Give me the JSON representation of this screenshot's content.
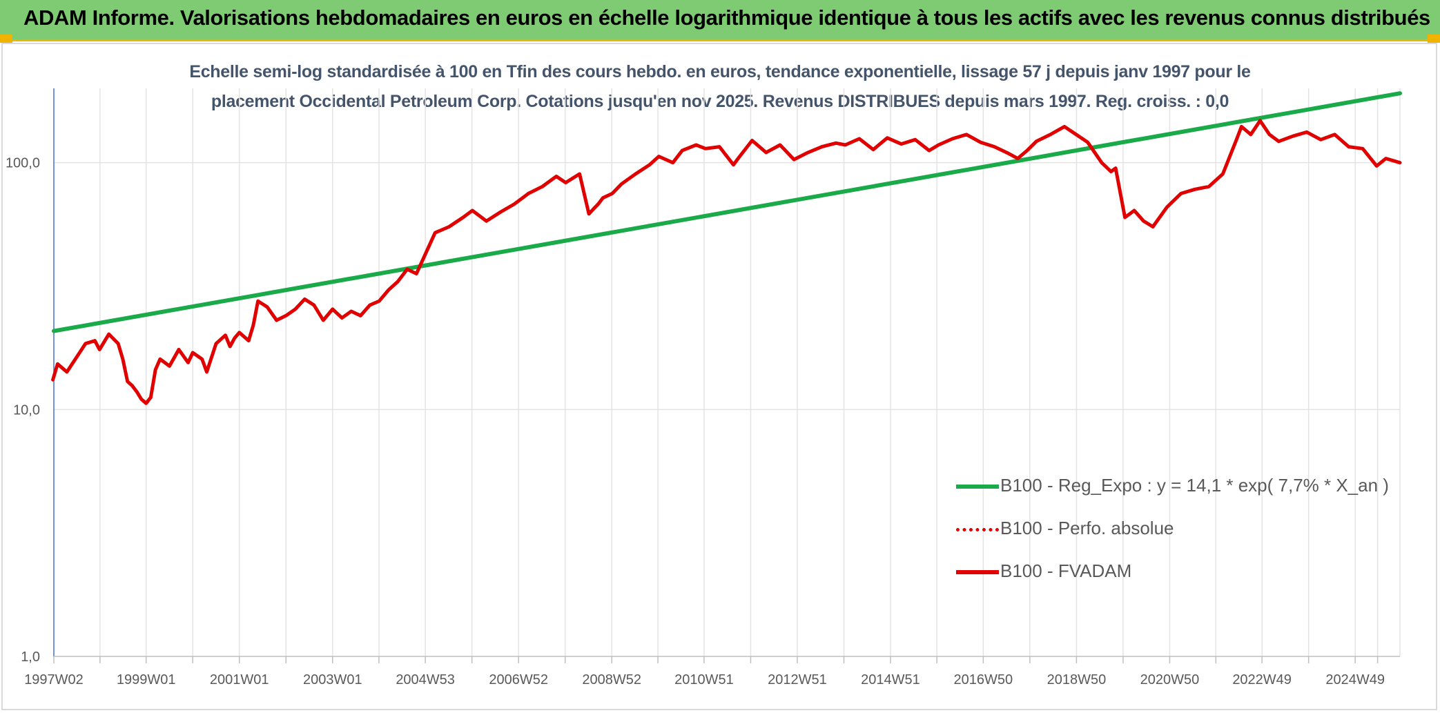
{
  "header": {
    "title": "ADAM Informe. Valorisations hebdomadaires en euros en échelle logarithmique identique à tous les actifs avec les revenus connus distribués"
  },
  "chart_data": {
    "type": "line",
    "title": "",
    "subtitle_lines": [
      "Echelle semi-log standardisée à 100 en Tfin des cours hebdo. en euros, tendance exponentielle, lissage 57 j depuis janv 1997 pour le",
      "placement Occidental Petroleum Corp. Cotations jusqu'en nov 2025. Revenus DISTRIBUES depuis mars 1997. Reg. croiss. : 0,0"
    ],
    "y_scale": "log",
    "ylim": [
      1,
      200
    ],
    "y_ticks": [
      {
        "value": 1,
        "label": "1,0"
      },
      {
        "value": 10,
        "label": "10,0"
      },
      {
        "value": 100,
        "label": "100,0"
      }
    ],
    "xlim": [
      1997.02,
      2025.9
    ],
    "x_ticks": [
      {
        "value": 1997.02,
        "label": "1997W02"
      },
      {
        "value": 1999.0,
        "label": "1999W01"
      },
      {
        "value": 2001.0,
        "label": "2001W01"
      },
      {
        "value": 2003.0,
        "label": "2003W01"
      },
      {
        "value": 2004.99,
        "label": "2004W53"
      },
      {
        "value": 2006.99,
        "label": "2006W52"
      },
      {
        "value": 2008.99,
        "label": "2008W52"
      },
      {
        "value": 2010.97,
        "label": "2010W51"
      },
      {
        "value": 2012.97,
        "label": "2012W51"
      },
      {
        "value": 2014.97,
        "label": "2014W51"
      },
      {
        "value": 2016.96,
        "label": "2016W50"
      },
      {
        "value": 2018.96,
        "label": "2018W50"
      },
      {
        "value": 2020.96,
        "label": "2020W50"
      },
      {
        "value": 2022.94,
        "label": "2022W49"
      },
      {
        "value": 2024.94,
        "label": "2024W49"
      }
    ],
    "grid": true,
    "legend_position": "bottom-right",
    "series": [
      {
        "name": "B100 - Reg_Expo : y = 14,1 * exp( 7,7% *  X_an )",
        "color": "#1aaa4a",
        "style": "solid",
        "x": [
          1997.02,
          2025.9
        ],
        "values": [
          20.8,
          191
        ]
      },
      {
        "name": "B100 - Perfo. absolue",
        "color": "#e00000",
        "style": "dotted",
        "x": [],
        "values": []
      },
      {
        "name": "B100 - FVADAM",
        "color": "#e00000",
        "style": "solid",
        "x": [
          1997.0,
          1997.1,
          1997.3,
          1997.5,
          1997.7,
          1997.9,
          1998.0,
          1998.2,
          1998.4,
          1998.5,
          1998.6,
          1998.7,
          1998.8,
          1998.9,
          1999.0,
          1999.1,
          1999.2,
          1999.3,
          1999.5,
          1999.7,
          1999.9,
          2000.0,
          2000.2,
          2000.3,
          2000.5,
          2000.7,
          2000.8,
          2000.9,
          2001.0,
          2001.2,
          2001.3,
          2001.4,
          2001.6,
          2001.8,
          2002.0,
          2002.2,
          2002.4,
          2002.6,
          2002.8,
          2003.0,
          2003.2,
          2003.4,
          2003.6,
          2003.8,
          2004.0,
          2004.2,
          2004.4,
          2004.6,
          2004.8,
          2005.0,
          2005.2,
          2005.5,
          2005.8,
          2006.0,
          2006.3,
          2006.6,
          2006.9,
          2007.2,
          2007.5,
          2007.8,
          2008.0,
          2008.3,
          2008.5,
          2008.6,
          2008.7,
          2008.8,
          2009.0,
          2009.2,
          2009.5,
          2009.8,
          2010.0,
          2010.3,
          2010.5,
          2010.8,
          2011.0,
          2011.3,
          2011.6,
          2011.7,
          2012.0,
          2012.3,
          2012.6,
          2012.9,
          2013.2,
          2013.5,
          2013.8,
          2014.0,
          2014.3,
          2014.6,
          2014.9,
          2015.2,
          2015.5,
          2015.8,
          2016.0,
          2016.3,
          2016.6,
          2016.9,
          2017.2,
          2017.5,
          2017.7,
          2017.9,
          2018.1,
          2018.4,
          2018.7,
          2018.9,
          2019.2,
          2019.5,
          2019.7,
          2019.8,
          2020.0,
          2020.2,
          2020.4,
          2020.6,
          2020.9,
          2021.2,
          2021.5,
          2021.8,
          2022.1,
          2022.4,
          2022.5,
          2022.7,
          2022.9,
          2023.1,
          2023.3,
          2023.6,
          2023.9,
          2024.2,
          2024.5,
          2024.8,
          2025.1,
          2025.4,
          2025.6,
          2025.9
        ],
        "values": [
          13.2,
          15.3,
          14.2,
          16.2,
          18.5,
          19.0,
          17.5,
          20.2,
          18.5,
          16.0,
          13.0,
          12.5,
          11.8,
          11.0,
          10.6,
          11.2,
          14.5,
          16.0,
          15.0,
          17.5,
          15.5,
          17.0,
          16.0,
          14.2,
          18.5,
          20.0,
          18.0,
          19.5,
          20.5,
          19.0,
          22.0,
          27.5,
          26.0,
          23.0,
          24.0,
          25.5,
          28.0,
          26.5,
          23.0,
          25.5,
          23.5,
          25.0,
          24.0,
          26.5,
          27.5,
          30.5,
          33.0,
          37.0,
          35.5,
          43.0,
          52.0,
          55.0,
          60.0,
          64.0,
          58.0,
          63.0,
          68.0,
          75.0,
          80.0,
          88.0,
          83.0,
          90.0,
          62.0,
          65.0,
          68.0,
          72.0,
          75.0,
          82.0,
          90.0,
          98.0,
          106.0,
          100.0,
          112.0,
          118.0,
          114.0,
          116.0,
          98.0,
          104.0,
          123.0,
          110.0,
          118.0,
          103.0,
          110.0,
          116.0,
          120.0,
          118.0,
          125.0,
          113.0,
          126.0,
          119.0,
          124.0,
          112.0,
          118.0,
          125.0,
          130.0,
          121.0,
          116.0,
          109.0,
          104.0,
          112.0,
          122.0,
          130.0,
          140.0,
          132.0,
          121.0,
          100.0,
          92.0,
          95.0,
          60.0,
          64.0,
          58.0,
          55.0,
          66.0,
          75.0,
          78.0,
          80.0,
          90.0,
          125.0,
          140.0,
          130.0,
          148.0,
          130.0,
          122.0,
          128.0,
          133.0,
          124.0,
          130.0,
          116.0,
          114.0,
          97.0,
          104.0,
          100.0
        ]
      }
    ]
  }
}
